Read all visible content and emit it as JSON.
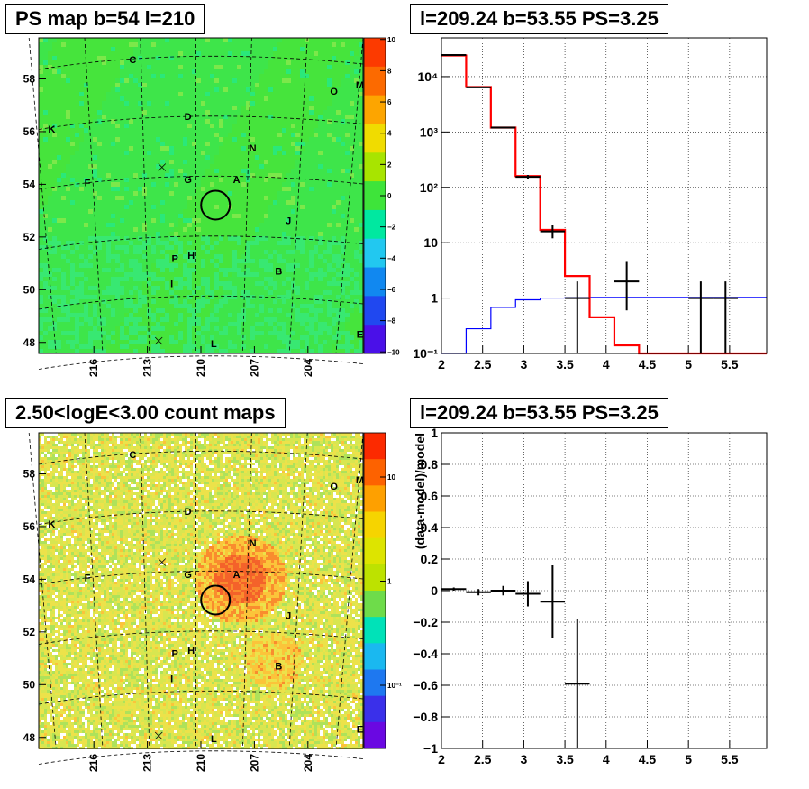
{
  "panels": {
    "ps_map": {
      "title": "PS map b=54 l=210",
      "colorbar_ticks": [
        "10",
        "8",
        "6",
        "4",
        "2",
        "0",
        "−2",
        "−4",
        "−6",
        "−8",
        "−10"
      ],
      "colorbar_colors": [
        "#fc3a00",
        "#fc6a00",
        "#fda500",
        "#f0dc00",
        "#a8e400",
        "#3ee43a",
        "#00e8a0",
        "#22c8f0",
        "#1188f0",
        "#2048f0",
        "#4a10e8"
      ]
    },
    "count_map": {
      "title": "2.50<logE<3.00 count maps",
      "colorbar_ticks": [
        "10",
        "1",
        "10⁻¹"
      ],
      "colorbar_colors": [
        "#fc2a00",
        "#fd6200",
        "#fea000",
        "#f6d400",
        "#dde400",
        "#bde200",
        "#6edc4a",
        "#00e2b8",
        "#1ab8f0",
        "#1e78f0",
        "#3a30ea",
        "#6a08e2"
      ]
    },
    "common": {
      "x_ticks": [
        "216",
        "213",
        "210",
        "207",
        "204"
      ],
      "y_ticks": [
        "58",
        "56",
        "54",
        "52",
        "50",
        "48"
      ],
      "source_labels": [
        "C",
        "M",
        "O",
        "D",
        "K",
        "N",
        "F",
        "G",
        "A",
        "J",
        "P",
        "H",
        "B",
        "I",
        "L",
        "E"
      ]
    }
  },
  "chart_data": [
    {
      "type": "heatmap",
      "title": "PS map b=54 l=210",
      "xlabel": "",
      "ylabel": "",
      "x_ticks": [
        216,
        213,
        210,
        207,
        204
      ],
      "y_ticks": [
        58,
        56,
        54,
        52,
        50,
        48
      ],
      "zlim": [
        -10,
        10
      ]
    },
    {
      "type": "line",
      "title": "l=209.24 b=53.55 PS=3.25",
      "xlabel": "",
      "ylabel": "",
      "log_y": true,
      "xlim": [
        2,
        5.95
      ],
      "ylim": [
        0.1,
        50000
      ],
      "x_ticks": [
        2,
        2.5,
        3,
        3.5,
        4,
        4.5,
        5,
        5.5
      ],
      "y_ticks": [
        {
          "value": 0.1,
          "label": "10⁻¹"
        },
        {
          "value": 1,
          "label": "1"
        },
        {
          "value": 10,
          "label": "10"
        },
        {
          "value": 100,
          "label": "10²"
        },
        {
          "value": 1000,
          "label": "10³"
        },
        {
          "value": 10000,
          "label": "10⁴"
        }
      ],
      "grid": true,
      "model_total": {
        "color": "#ff0000",
        "bin_edges": [
          2,
          2.3,
          2.6,
          2.9,
          3.2,
          3.5,
          3.8,
          4.1,
          4.4,
          4.7,
          5.0,
          5.3,
          5.6,
          5.95
        ],
        "values": [
          24000,
          6500,
          1200,
          160,
          17,
          2.5,
          0.45,
          0.14,
          0.1,
          0.1,
          0.1,
          0.1,
          0.1
        ]
      },
      "model_background": {
        "color": "#0000ff",
        "bin_edges": [
          2,
          2.3,
          2.6,
          2.9,
          3.2,
          3.5,
          3.8,
          4.1,
          4.4,
          4.7,
          5.0,
          5.3,
          5.6,
          5.95
        ],
        "values": [
          0.05,
          0.28,
          0.68,
          0.93,
          1.0,
          1.02,
          1.03,
          1.03,
          1.03,
          1.03,
          1.03,
          1.03,
          1.03
        ]
      },
      "data": [
        {
          "x": 2.15,
          "y": 24500,
          "xerr": 0.15,
          "ylo": 24300,
          "yhi": 24700
        },
        {
          "x": 2.45,
          "y": 6400,
          "xerr": 0.15,
          "ylo": 6320,
          "yhi": 6480
        },
        {
          "x": 2.75,
          "y": 1200,
          "xerr": 0.15,
          "ylo": 1170,
          "yhi": 1235
        },
        {
          "x": 3.05,
          "y": 155,
          "xerr": 0.15,
          "ylo": 143,
          "yhi": 167
        },
        {
          "x": 3.35,
          "y": 16,
          "xerr": 0.15,
          "ylo": 12,
          "yhi": 21
        },
        {
          "x": 3.65,
          "y": 1,
          "xerr": 0.15,
          "ylo": 0.1,
          "yhi": 2
        },
        {
          "x": 4.25,
          "y": 2,
          "xerr": 0.15,
          "ylo": 0.6,
          "yhi": 4.5
        },
        {
          "x": 5.15,
          "y": 1,
          "xerr": 0.15,
          "ylo": 0.1,
          "yhi": 2
        },
        {
          "x": 5.45,
          "y": 1,
          "xerr": 0.15,
          "ylo": 0.1,
          "yhi": 2
        }
      ]
    },
    {
      "type": "heatmap",
      "title": "2.50<logE<3.00 count maps",
      "xlabel": "",
      "ylabel": "",
      "x_ticks": [
        216,
        213,
        210,
        207,
        204
      ],
      "y_ticks": [
        58,
        56,
        54,
        52,
        50,
        48
      ],
      "log_z": true
    },
    {
      "type": "scatter",
      "title": "l=209.24 b=53.55 PS=3.25",
      "xlabel": "",
      "ylabel": "(data-model)/model",
      "xlim": [
        2,
        5.95
      ],
      "ylim": [
        -1,
        1
      ],
      "x_ticks": [
        2,
        2.5,
        3,
        3.5,
        4,
        4.5,
        5,
        5.5
      ],
      "y_ticks": [
        {
          "value": 1,
          "label": "1"
        },
        {
          "value": 0.8,
          "label": "0.8"
        },
        {
          "value": 0.6,
          "label": "0.6"
        },
        {
          "value": 0.4,
          "label": "0.4"
        },
        {
          "value": 0.2,
          "label": "0.2"
        },
        {
          "value": 0,
          "label": "0"
        },
        {
          "value": -0.2,
          "label": "−0.2"
        },
        {
          "value": -0.4,
          "label": "−0.4"
        },
        {
          "value": -0.6,
          "label": "−0.6"
        },
        {
          "value": -0.8,
          "label": "−0.8"
        },
        {
          "value": -1,
          "label": "−1"
        }
      ],
      "grid": true,
      "data": [
        {
          "x": 2.15,
          "y": 0.01,
          "xerr": 0.15,
          "ylo": 0.0,
          "yhi": 0.02
        },
        {
          "x": 2.45,
          "y": -0.01,
          "xerr": 0.15,
          "ylo": -0.03,
          "yhi": 0.01
        },
        {
          "x": 2.75,
          "y": 0.0,
          "xerr": 0.15,
          "ylo": -0.03,
          "yhi": 0.03
        },
        {
          "x": 3.05,
          "y": -0.02,
          "xerr": 0.15,
          "ylo": -0.1,
          "yhi": 0.06
        },
        {
          "x": 3.35,
          "y": -0.07,
          "xerr": 0.15,
          "ylo": -0.3,
          "yhi": 0.16
        },
        {
          "x": 3.65,
          "y": -0.59,
          "xerr": 0.15,
          "ylo": -1.0,
          "yhi": -0.18
        }
      ]
    }
  ]
}
